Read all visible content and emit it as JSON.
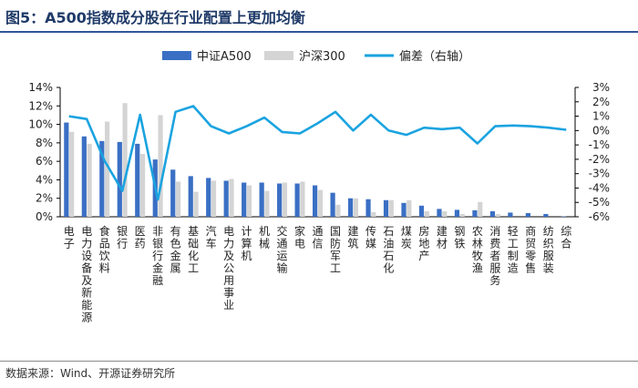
{
  "header": {
    "title": "图5：A500指数成分股在行业配置上更加均衡"
  },
  "footer": {
    "source": "数据来源：Wind、开源证券研究所"
  },
  "chart_data": {
    "type": "bar",
    "title": "图5：A500指数成分股在行业配置上更加均衡",
    "categories": [
      "电子",
      "电力设备及新能源",
      "食品饮料",
      "银行",
      "医药",
      "非银行金融",
      "有色金属",
      "基础化工",
      "汽车",
      "电力及公用事业",
      "计算机",
      "机械",
      "交通运输",
      "家电",
      "通信",
      "国防军工",
      "建筑",
      "传媒",
      "石油石化",
      "煤炭",
      "房地产",
      "建材",
      "钢铁",
      "农林牧渔",
      "消费者服务",
      "轻工制造",
      "商贸零售",
      "纺织服装",
      "综合"
    ],
    "series": [
      {
        "name": "中证A500",
        "axis": "left",
        "color": "#3a6fc4",
        "values": [
          10.2,
          8.7,
          8.2,
          8.1,
          7.9,
          6.2,
          5.1,
          4.4,
          4.2,
          3.9,
          3.7,
          3.7,
          3.6,
          3.6,
          3.4,
          2.6,
          2.0,
          1.9,
          1.8,
          1.5,
          1.2,
          0.85,
          0.75,
          0.7,
          0.6,
          0.45,
          0.4,
          0.3,
          0.05
        ]
      },
      {
        "name": "沪深300",
        "axis": "left",
        "color": "#d4d4d4",
        "values": [
          9.2,
          7.9,
          10.3,
          12.3,
          6.8,
          11.0,
          3.8,
          2.7,
          3.9,
          4.1,
          3.4,
          2.8,
          3.7,
          3.8,
          2.9,
          1.3,
          2.0,
          0.5,
          1.8,
          1.8,
          0.6,
          0.6,
          0.3,
          1.6,
          0.3,
          0.0,
          0.0,
          0.0,
          0.0
        ]
      },
      {
        "name": "偏差（右轴）",
        "axis": "right",
        "type": "line",
        "color": "#1aa3e0",
        "values": [
          1.0,
          0.8,
          -2.1,
          -4.2,
          1.1,
          -4.8,
          1.3,
          1.7,
          0.3,
          -0.2,
          0.3,
          0.9,
          -0.1,
          -0.2,
          0.5,
          1.3,
          0.0,
          1.1,
          0.0,
          -0.3,
          0.2,
          0.1,
          0.2,
          -0.9,
          0.3,
          0.35,
          0.3,
          0.2,
          0.05
        ]
      }
    ],
    "legend": [
      "中证A500",
      "沪深300",
      "偏差（右轴）"
    ],
    "legend_position": "top",
    "y_left": {
      "min": 0,
      "max": 14,
      "ticks": [
        0,
        2,
        4,
        6,
        8,
        10,
        12,
        14
      ],
      "tick_labels": [
        "0%",
        "2%",
        "4%",
        "6%",
        "8%",
        "10%",
        "12%",
        "14%"
      ]
    },
    "y_right": {
      "min": -6,
      "max": 3,
      "ticks": [
        -6,
        -5,
        -4,
        -3,
        -2,
        -1,
        0,
        1,
        2,
        3
      ],
      "tick_labels": [
        "-6%",
        "-5%",
        "-4%",
        "-3%",
        "-2%",
        "-1%",
        "0%",
        "1%",
        "2%",
        "3%"
      ]
    },
    "grid": false
  }
}
